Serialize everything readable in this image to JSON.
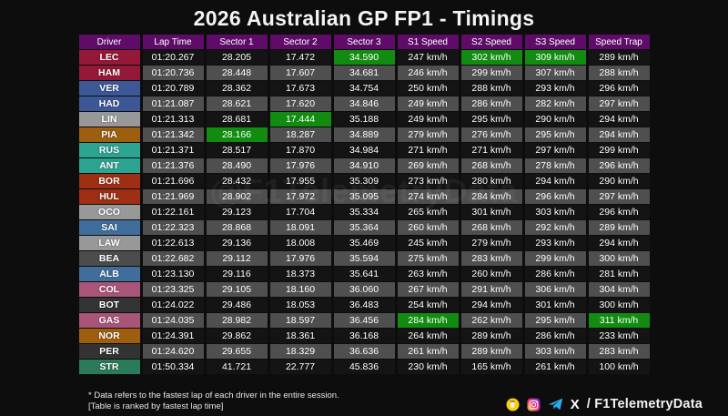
{
  "title": "2026 Australian GP FP1 - Timings",
  "watermark": "@F1TelemetryData",
  "columns": [
    "Driver",
    "Lap Time",
    "Sector 1",
    "Sector 2",
    "Sector 3",
    "S1 Speed",
    "S2 Speed",
    "S3 Speed",
    "Speed Trap"
  ],
  "colors": {
    "header_bg": "#5e0c68",
    "best_green": "#118c11",
    "row_dark": "#141414",
    "row_gray": "#4f4f4f",
    "page_bg": "#0d0d0d"
  },
  "rows": [
    {
      "driver": "LEC",
      "color": "#941838",
      "values": [
        "01:20.267",
        "28.205",
        "17.472",
        "34.590",
        "247 km/h",
        "302 km/h",
        "309 km/h",
        "289 km/h"
      ],
      "best": [
        3,
        5,
        6
      ]
    },
    {
      "driver": "HAM",
      "color": "#941838",
      "values": [
        "01:20.736",
        "28.448",
        "17.607",
        "34.681",
        "246 km/h",
        "299 km/h",
        "307 km/h",
        "288 km/h"
      ],
      "best": []
    },
    {
      "driver": "VER",
      "color": "#3c5896",
      "values": [
        "01:20.789",
        "28.362",
        "17.673",
        "34.754",
        "250 km/h",
        "288 km/h",
        "293 km/h",
        "296 km/h"
      ],
      "best": []
    },
    {
      "driver": "HAD",
      "color": "#3c5896",
      "values": [
        "01:21.087",
        "28.621",
        "17.620",
        "34.846",
        "249 km/h",
        "286 km/h",
        "282 km/h",
        "297 km/h"
      ],
      "best": []
    },
    {
      "driver": "LIN",
      "color": "#989898",
      "values": [
        "01:21.313",
        "28.681",
        "17.444",
        "35.188",
        "249 km/h",
        "295 km/h",
        "290 km/h",
        "294 km/h"
      ],
      "best": [
        2
      ]
    },
    {
      "driver": "PIA",
      "color": "#9e5e10",
      "values": [
        "01:21.342",
        "28.166",
        "18.287",
        "34.889",
        "279 km/h",
        "276 km/h",
        "295 km/h",
        "294 km/h"
      ],
      "best": [
        1
      ]
    },
    {
      "driver": "RUS",
      "color": "#2da392",
      "values": [
        "01:21.371",
        "28.517",
        "17.870",
        "34.984",
        "271 km/h",
        "271 km/h",
        "297 km/h",
        "299 km/h"
      ],
      "best": []
    },
    {
      "driver": "ANT",
      "color": "#2da392",
      "values": [
        "01:21.376",
        "28.490",
        "17.976",
        "34.910",
        "269 km/h",
        "268 km/h",
        "278 km/h",
        "296 km/h"
      ],
      "best": []
    },
    {
      "driver": "BOR",
      "color": "#9e2f12",
      "values": [
        "01:21.696",
        "28.432",
        "17.955",
        "35.309",
        "273 km/h",
        "280 km/h",
        "294 km/h",
        "290 km/h"
      ],
      "best": []
    },
    {
      "driver": "HUL",
      "color": "#9e2f12",
      "values": [
        "01:21.969",
        "28.902",
        "17.972",
        "35.095",
        "274 km/h",
        "284 km/h",
        "296 km/h",
        "297 km/h"
      ],
      "best": []
    },
    {
      "driver": "OCO",
      "color": "#989898",
      "values": [
        "01:22.161",
        "29.123",
        "17.704",
        "35.334",
        "265 km/h",
        "301 km/h",
        "303 km/h",
        "296 km/h"
      ],
      "best": []
    },
    {
      "driver": "SAI",
      "color": "#3f6e9c",
      "values": [
        "01:22.323",
        "28.868",
        "18.091",
        "35.364",
        "260 km/h",
        "268 km/h",
        "292 km/h",
        "289 km/h"
      ],
      "best": []
    },
    {
      "driver": "LAW",
      "color": "#989898",
      "values": [
        "01:22.613",
        "29.136",
        "18.008",
        "35.469",
        "245 km/h",
        "279 km/h",
        "293 km/h",
        "294 km/h"
      ],
      "best": []
    },
    {
      "driver": "BEA",
      "color": "#4c4c4c",
      "values": [
        "01:22.682",
        "29.112",
        "17.976",
        "35.594",
        "275 km/h",
        "283 km/h",
        "299 km/h",
        "300 km/h"
      ],
      "best": []
    },
    {
      "driver": "ALB",
      "color": "#3f6e9c",
      "values": [
        "01:23.130",
        "29.116",
        "18.373",
        "35.641",
        "263 km/h",
        "260 km/h",
        "286 km/h",
        "281 km/h"
      ],
      "best": []
    },
    {
      "driver": "COL",
      "color": "#a85579",
      "values": [
        "01:23.325",
        "29.105",
        "18.160",
        "36.060",
        "267 km/h",
        "291 km/h",
        "306 km/h",
        "304 km/h"
      ],
      "best": []
    },
    {
      "driver": "BOT",
      "color": "#333333",
      "values": [
        "01:24.022",
        "29.486",
        "18.053",
        "36.483",
        "254 km/h",
        "294 km/h",
        "301 km/h",
        "300 km/h"
      ],
      "best": []
    },
    {
      "driver": "GAS",
      "color": "#a85579",
      "values": [
        "01:24.035",
        "28.982",
        "18.597",
        "36.456",
        "284 km/h",
        "262 km/h",
        "295 km/h",
        "311 km/h"
      ],
      "best": [
        4,
        7
      ]
    },
    {
      "driver": "NOR",
      "color": "#9e5e10",
      "values": [
        "01:24.391",
        "29.862",
        "18.361",
        "36.168",
        "264 km/h",
        "289 km/h",
        "286 km/h",
        "233 km/h"
      ],
      "best": []
    },
    {
      "driver": "PER",
      "color": "#333333",
      "values": [
        "01:24.620",
        "29.655",
        "18.329",
        "36.636",
        "261 km/h",
        "289 km/h",
        "303 km/h",
        "283 km/h"
      ],
      "best": []
    },
    {
      "driver": "STR",
      "color": "#2b7a5c",
      "values": [
        "01:50.334",
        "41.721",
        "22.777",
        "45.836",
        "230 km/h",
        "165 km/h",
        "261 km/h",
        "100 km/h"
      ],
      "best": []
    }
  ],
  "value_names": [
    "lap-time",
    "sector-1",
    "sector-2",
    "sector-3",
    "s1-speed",
    "s2-speed",
    "s3-speed",
    "speed-trap"
  ],
  "footnotes": [
    "* Data refers to the fastest lap of each driver in the entire session.",
    "[Table is ranked by fastest lap time]"
  ],
  "social": {
    "x_glyph": "X",
    "handle": "/ F1TelemetryData"
  }
}
